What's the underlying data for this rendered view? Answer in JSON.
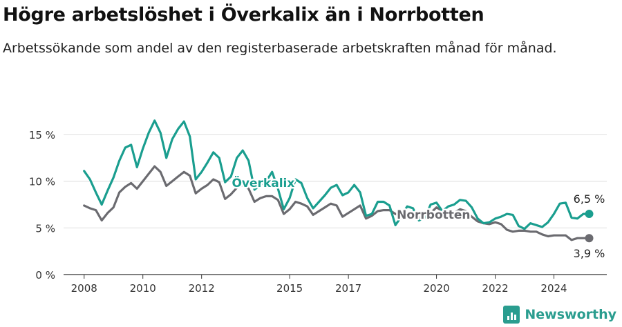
{
  "chart_data": {
    "type": "line",
    "title": "Högre arbetslöshet i Överkalix än i Norrbotten",
    "subtitle": "Arbetssökande som andel av den registerbaserade arbetskraften månad för månad.",
    "xlabel": "",
    "ylabel": "",
    "x_ticks": [
      "2008",
      "2010",
      "2012",
      "2015",
      "2017",
      "2020",
      "2022",
      "2024"
    ],
    "y_ticks": [
      "0 %",
      "5 %",
      "10 %",
      "15 %"
    ],
    "ylim": [
      0,
      17
    ],
    "xlim": [
      2007.3,
      2025.8
    ],
    "grid": "horizontal",
    "series": [
      {
        "name": "Överkalix",
        "color": "#1a9e8f",
        "end_label": "6,5 %",
        "points": [
          [
            2008.0,
            11.1
          ],
          [
            2008.2,
            10.2
          ],
          [
            2008.4,
            8.8
          ],
          [
            2008.6,
            7.5
          ],
          [
            2008.8,
            9.0
          ],
          [
            2009.0,
            10.4
          ],
          [
            2009.2,
            12.2
          ],
          [
            2009.4,
            13.6
          ],
          [
            2009.6,
            13.9
          ],
          [
            2009.8,
            11.5
          ],
          [
            2010.0,
            13.5
          ],
          [
            2010.2,
            15.2
          ],
          [
            2010.4,
            16.5
          ],
          [
            2010.6,
            15.2
          ],
          [
            2010.8,
            12.5
          ],
          [
            2011.0,
            14.5
          ],
          [
            2011.2,
            15.6
          ],
          [
            2011.4,
            16.4
          ],
          [
            2011.6,
            14.8
          ],
          [
            2011.8,
            10.2
          ],
          [
            2012.0,
            11.0
          ],
          [
            2012.2,
            12.0
          ],
          [
            2012.4,
            13.1
          ],
          [
            2012.6,
            12.5
          ],
          [
            2012.8,
            9.9
          ],
          [
            2013.0,
            10.5
          ],
          [
            2013.2,
            12.5
          ],
          [
            2013.4,
            13.3
          ],
          [
            2013.6,
            12.2
          ],
          [
            2013.8,
            9.1
          ],
          [
            2014.0,
            9.6
          ],
          [
            2014.2,
            10.0
          ],
          [
            2014.4,
            11.0
          ],
          [
            2014.6,
            9.2
          ],
          [
            2014.8,
            7.0
          ],
          [
            2015.0,
            8.2
          ],
          [
            2015.2,
            10.2
          ],
          [
            2015.4,
            9.8
          ],
          [
            2015.6,
            8.2
          ],
          [
            2015.8,
            7.1
          ],
          [
            2016.0,
            7.8
          ],
          [
            2016.2,
            8.5
          ],
          [
            2016.4,
            9.3
          ],
          [
            2016.6,
            9.6
          ],
          [
            2016.8,
            8.5
          ],
          [
            2017.0,
            8.8
          ],
          [
            2017.2,
            9.6
          ],
          [
            2017.4,
            8.8
          ],
          [
            2017.6,
            6.3
          ],
          [
            2017.8,
            6.5
          ],
          [
            2018.0,
            7.8
          ],
          [
            2018.2,
            7.8
          ],
          [
            2018.4,
            7.4
          ],
          [
            2018.6,
            5.3
          ],
          [
            2018.8,
            6.2
          ],
          [
            2019.0,
            7.3
          ],
          [
            2019.2,
            7.1
          ],
          [
            2019.4,
            5.8
          ],
          [
            2019.6,
            6.1
          ],
          [
            2019.8,
            7.5
          ],
          [
            2020.0,
            7.7
          ],
          [
            2020.2,
            6.8
          ],
          [
            2020.4,
            7.3
          ],
          [
            2020.6,
            7.5
          ],
          [
            2020.8,
            8.0
          ],
          [
            2021.0,
            7.9
          ],
          [
            2021.2,
            7.2
          ],
          [
            2021.4,
            6.0
          ],
          [
            2021.6,
            5.5
          ],
          [
            2021.8,
            5.6
          ],
          [
            2022.0,
            6.0
          ],
          [
            2022.2,
            6.2
          ],
          [
            2022.4,
            6.5
          ],
          [
            2022.6,
            6.4
          ],
          [
            2022.8,
            5.2
          ],
          [
            2023.0,
            4.9
          ],
          [
            2023.2,
            5.5
          ],
          [
            2023.4,
            5.3
          ],
          [
            2023.6,
            5.1
          ],
          [
            2023.8,
            5.6
          ],
          [
            2024.0,
            6.5
          ],
          [
            2024.2,
            7.6
          ],
          [
            2024.4,
            7.7
          ],
          [
            2024.6,
            6.1
          ],
          [
            2024.8,
            6.0
          ],
          [
            2025.0,
            6.5
          ],
          [
            2025.2,
            6.5
          ]
        ]
      },
      {
        "name": "Norrbotten",
        "color": "#6b6b70",
        "end_label": "3,9 %",
        "points": [
          [
            2008.0,
            7.4
          ],
          [
            2008.2,
            7.1
          ],
          [
            2008.4,
            6.9
          ],
          [
            2008.6,
            5.8
          ],
          [
            2008.8,
            6.6
          ],
          [
            2009.0,
            7.2
          ],
          [
            2009.2,
            8.8
          ],
          [
            2009.4,
            9.4
          ],
          [
            2009.6,
            9.8
          ],
          [
            2009.8,
            9.2
          ],
          [
            2010.0,
            10.0
          ],
          [
            2010.2,
            10.8
          ],
          [
            2010.4,
            11.6
          ],
          [
            2010.6,
            11.0
          ],
          [
            2010.8,
            9.5
          ],
          [
            2011.0,
            10.0
          ],
          [
            2011.2,
            10.5
          ],
          [
            2011.4,
            11.0
          ],
          [
            2011.6,
            10.6
          ],
          [
            2011.8,
            8.7
          ],
          [
            2012.0,
            9.2
          ],
          [
            2012.2,
            9.6
          ],
          [
            2012.4,
            10.2
          ],
          [
            2012.6,
            9.9
          ],
          [
            2012.8,
            8.1
          ],
          [
            2013.0,
            8.6
          ],
          [
            2013.2,
            9.3
          ],
          [
            2013.4,
            9.6
          ],
          [
            2013.6,
            9.2
          ],
          [
            2013.8,
            7.8
          ],
          [
            2014.0,
            8.2
          ],
          [
            2014.2,
            8.4
          ],
          [
            2014.4,
            8.4
          ],
          [
            2014.6,
            8.0
          ],
          [
            2014.8,
            6.5
          ],
          [
            2015.0,
            7.0
          ],
          [
            2015.2,
            7.8
          ],
          [
            2015.4,
            7.6
          ],
          [
            2015.6,
            7.3
          ],
          [
            2015.8,
            6.4
          ],
          [
            2016.0,
            6.8
          ],
          [
            2016.2,
            7.2
          ],
          [
            2016.4,
            7.6
          ],
          [
            2016.6,
            7.4
          ],
          [
            2016.8,
            6.2
          ],
          [
            2017.0,
            6.6
          ],
          [
            2017.2,
            7.0
          ],
          [
            2017.4,
            7.4
          ],
          [
            2017.6,
            6.0
          ],
          [
            2017.8,
            6.3
          ],
          [
            2018.0,
            6.8
          ],
          [
            2018.2,
            6.9
          ],
          [
            2018.4,
            6.9
          ],
          [
            2018.6,
            6.5
          ],
          [
            2018.8,
            6.2
          ],
          [
            2019.0,
            6.6
          ],
          [
            2019.2,
            6.7
          ],
          [
            2019.4,
            6.1
          ],
          [
            2019.6,
            6.2
          ],
          [
            2019.8,
            6.6
          ],
          [
            2020.0,
            7.2
          ],
          [
            2020.2,
            6.8
          ],
          [
            2020.4,
            6.6
          ],
          [
            2020.6,
            6.6
          ],
          [
            2020.8,
            7.0
          ],
          [
            2021.0,
            6.8
          ],
          [
            2021.2,
            6.2
          ],
          [
            2021.4,
            5.7
          ],
          [
            2021.6,
            5.5
          ],
          [
            2021.8,
            5.4
          ],
          [
            2022.0,
            5.6
          ],
          [
            2022.2,
            5.4
          ],
          [
            2022.4,
            4.8
          ],
          [
            2022.6,
            4.6
          ],
          [
            2022.8,
            4.7
          ],
          [
            2023.0,
            4.7
          ],
          [
            2023.2,
            4.6
          ],
          [
            2023.4,
            4.6
          ],
          [
            2023.6,
            4.3
          ],
          [
            2023.8,
            4.1
          ],
          [
            2024.0,
            4.2
          ],
          [
            2024.2,
            4.2
          ],
          [
            2024.4,
            4.2
          ],
          [
            2024.6,
            3.7
          ],
          [
            2024.8,
            3.9
          ],
          [
            2025.0,
            3.9
          ],
          [
            2025.2,
            3.9
          ]
        ]
      }
    ]
  },
  "brand": {
    "name": "Newsworthy",
    "color": "#2a9d8f",
    "icon": "bar-chart-logo-icon"
  }
}
